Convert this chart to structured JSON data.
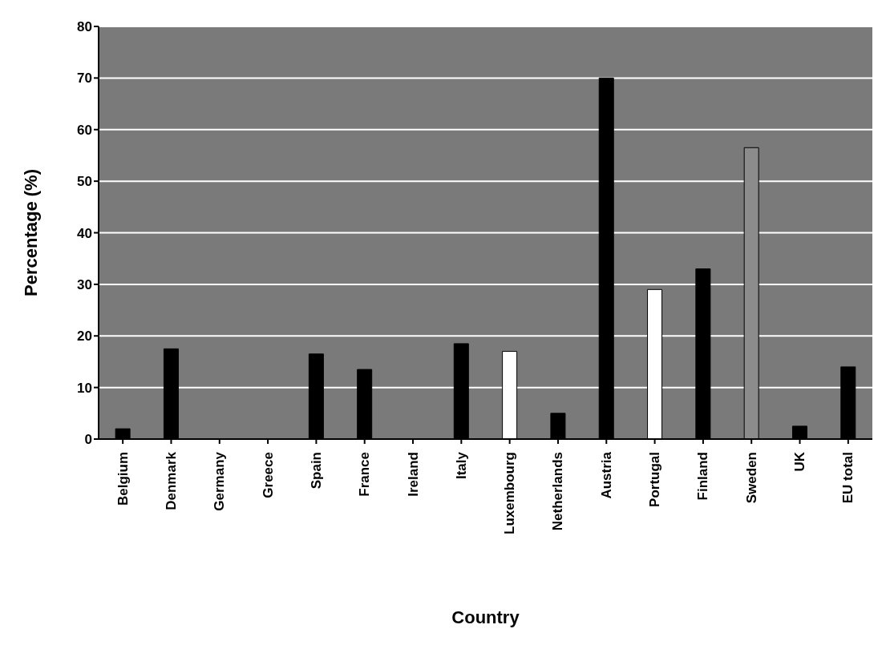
{
  "chart_data": {
    "type": "bar",
    "xlabel": "Country",
    "ylabel": "Percentage (%)",
    "categories": [
      "Belgium",
      "Denmark",
      "Germany",
      "Greece",
      "Spain",
      "France",
      "Ireland",
      "Italy",
      "Luxembourg",
      "Netherlands",
      "Austria",
      "Portugal",
      "Finland",
      "Sweden",
      "UK",
      "EU total"
    ],
    "values": [
      2,
      17.5,
      null,
      null,
      16.5,
      13.5,
      null,
      18.5,
      17,
      5,
      70,
      29,
      33,
      56.5,
      2.5,
      14
    ],
    "colors": [
      "#000000",
      "#000000",
      "#000000",
      "#000000",
      "#000000",
      "#000000",
      "#000000",
      "#000000",
      "#ffffff",
      "#000000",
      "#000000",
      "#ffffff",
      "#000000",
      "#8c8c8c",
      "#000000",
      "#000000"
    ],
    "ylim": [
      0,
      80
    ],
    "yticks": [
      0,
      10,
      20,
      30,
      40,
      50,
      60,
      70,
      80
    ],
    "grid": "y"
  }
}
